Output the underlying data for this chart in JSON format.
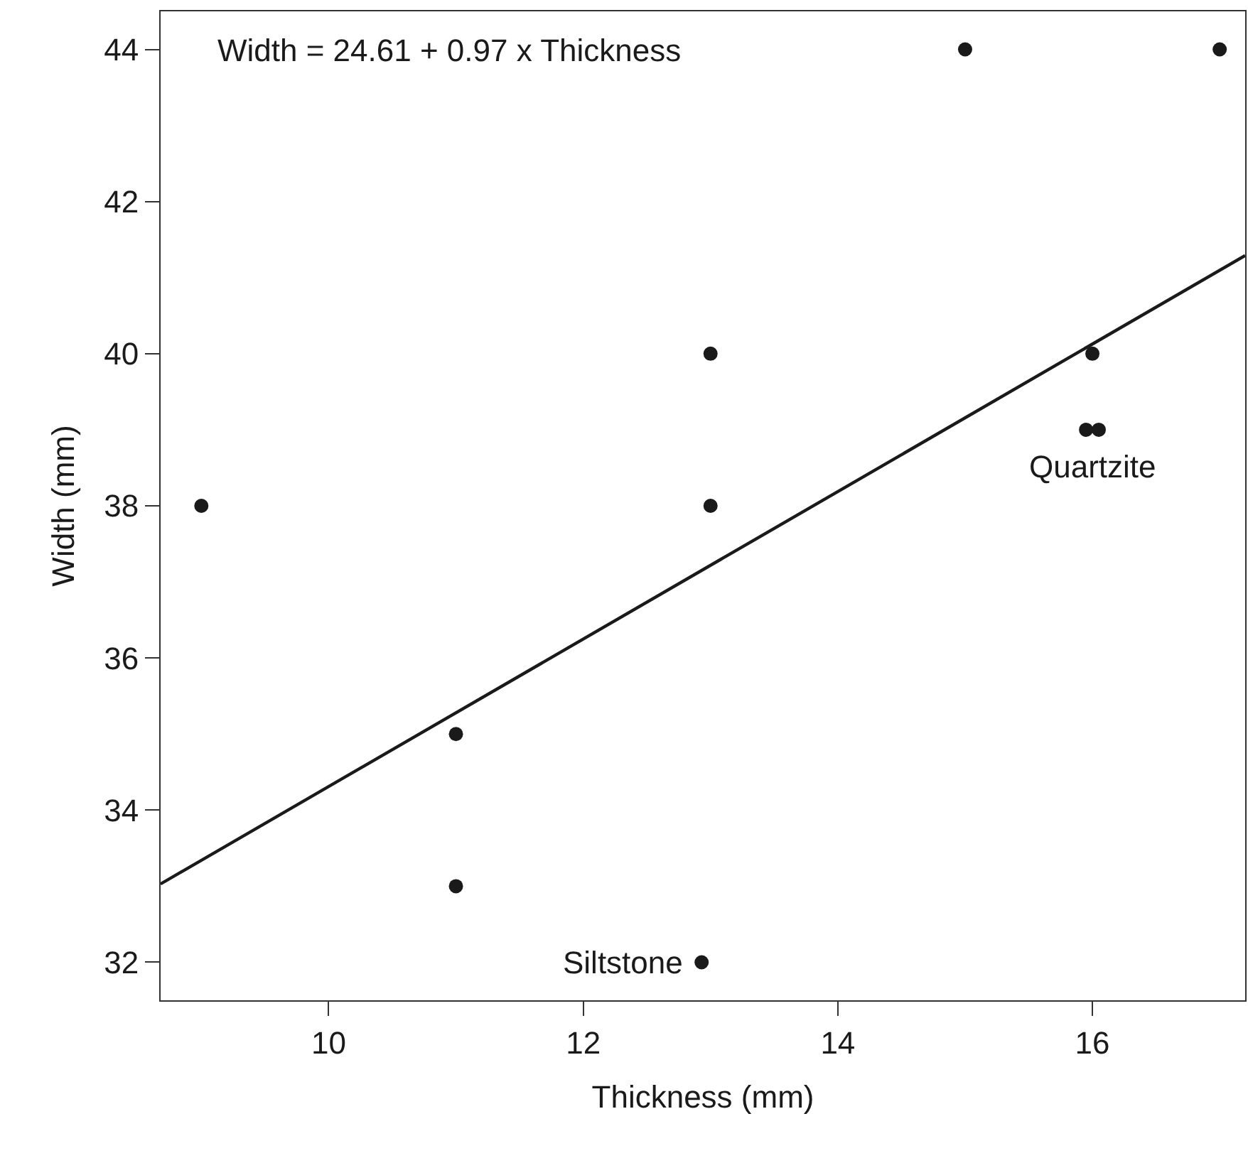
{
  "chart_data": {
    "type": "scatter",
    "xlabel": "Thickness (mm)",
    "ylabel": "Width (mm)",
    "xlim": [
      8.68,
      17.2
    ],
    "xticks": [
      10,
      12,
      14,
      16
    ],
    "ylim": [
      31.5,
      44.5
    ],
    "yticks": [
      32,
      34,
      36,
      38,
      40,
      42,
      44
    ],
    "legend": false,
    "series": [
      {
        "color": "#1a1a1a",
        "marker": "circle",
        "x": [
          9,
          11,
          11,
          13,
          13,
          12.93,
          15,
          17,
          16,
          15.95,
          16.05
        ],
        "values": [
          38,
          35,
          33,
          40,
          38,
          32,
          44,
          44,
          40,
          39,
          39
        ]
      },
      {
        "type": "line",
        "color": "#1a1a1a",
        "line_style": "solid",
        "x": [
          8.68,
          17.2
        ],
        "values": [
          33.03,
          41.29
        ]
      }
    ],
    "annotations": [
      "Width = 24.61 + 0.97 x Thickness",
      {
        "text": "Siltstone",
        "x": 12.93,
        "y": 32
      },
      {
        "text": "Quartzite",
        "x": 16,
        "y": 39
      }
    ]
  }
}
